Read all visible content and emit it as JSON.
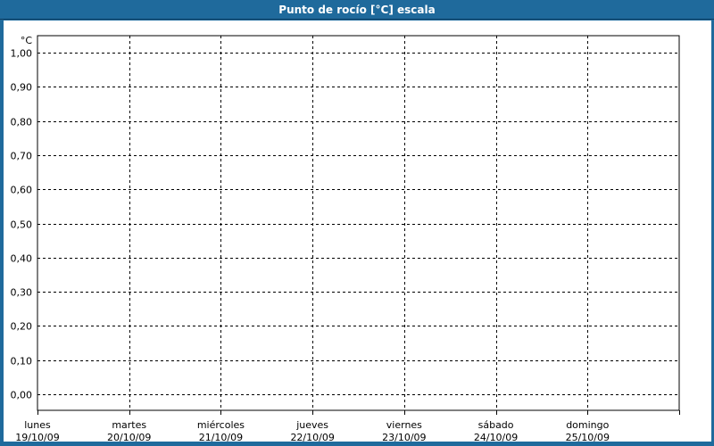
{
  "window": {
    "title": "Punto de rocío [°C] escala"
  },
  "colors": {
    "frame": "#1f6a9c",
    "frame_divider": "#0e3d5f",
    "title_text": "#ffffff",
    "background": "#ffffff",
    "plot_background": "#ffffff",
    "grid": "#000000",
    "axis": "#000000",
    "text": "#000000"
  },
  "chart_data": {
    "type": "line",
    "title": "Punto de rocío [°C] escala",
    "y_axis": {
      "unit": "°C",
      "tick_labels": [
        "1,00",
        "0,90",
        "0,80",
        "0,70",
        "0,60",
        "0,50",
        "0,40",
        "0,30",
        "0,20",
        "0,10",
        "0,00"
      ],
      "min": 0.0,
      "max": 1.0,
      "step": 0.1
    },
    "x_axis": {
      "categories": [
        {
          "day": "lunes",
          "date": "19/10/09"
        },
        {
          "day": "martes",
          "date": "20/10/09"
        },
        {
          "day": "miércoles",
          "date": "21/10/09"
        },
        {
          "day": "jueves",
          "date": "22/10/09"
        },
        {
          "day": "viernes",
          "date": "23/10/09"
        },
        {
          "day": "sábado",
          "date": "24/10/09"
        },
        {
          "day": "domingo",
          "date": "25/10/09"
        }
      ]
    },
    "series": [],
    "grid": {
      "horizontal": "dashed",
      "vertical": "dashed"
    },
    "legend": "none"
  }
}
